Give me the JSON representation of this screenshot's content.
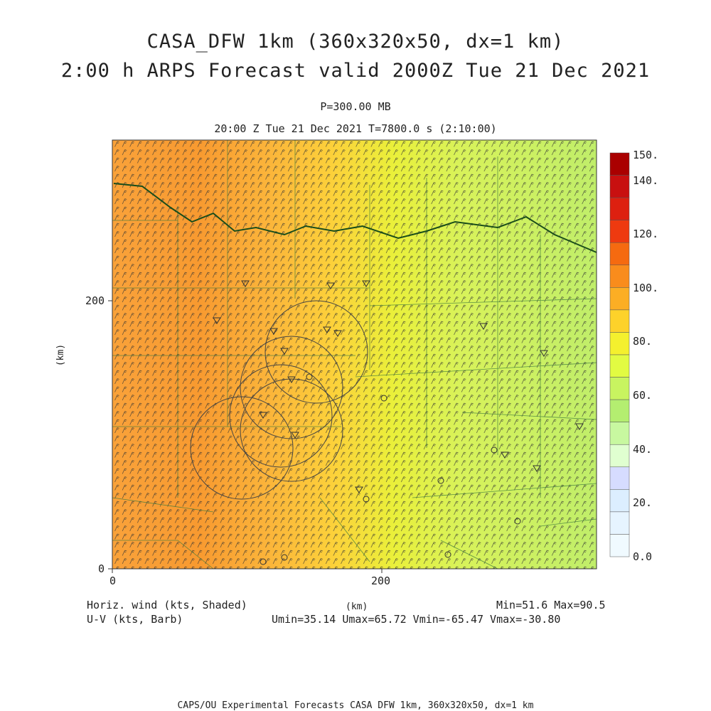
{
  "title_line1": "CASA_DFW 1km (360x320x50, dx=1 km)",
  "title_line2": "2:00 h ARPS Forecast valid 2000Z Tue 21 Dec 2021",
  "pressure_level": "P=300.00 MB",
  "valid_time": "20:00 Z Tue 21 Dec 2021    T=7800.0 s (2:10:00)",
  "axes": {
    "y_ticks": [
      "0",
      "200"
    ],
    "x_ticks": [
      "0",
      "200"
    ],
    "x_label": "(km)",
    "y_label": "(km)"
  },
  "colorbar": {
    "labels": [
      "150.",
      "140.",
      "120.",
      "100.",
      "80.",
      "60.",
      "40.",
      "20.",
      "0.0"
    ],
    "colors": [
      "#aa0000",
      "#c81010",
      "#dd2010",
      "#ee3a10",
      "#f56a10",
      "#f98c1c",
      "#fcae24",
      "#fdd22a",
      "#f4f02e",
      "#e2fb42",
      "#c8f460",
      "#b4ee70",
      "#c8f8a0",
      "#e0ffd0",
      "#d6dcff",
      "#dceeff",
      "#e6f4ff",
      "#f0faff"
    ]
  },
  "legend": {
    "left_line1": "Horiz. wind (kts, Shaded)",
    "left_line2": "U-V (kts, Barb)",
    "center_unit": "(km)",
    "min_max": "Min=51.6 Max=90.5",
    "uv_range": "Umin=35.14 Umax=65.72 Vmin=-65.47 Vmax=-30.80"
  },
  "footer": "CAPS/OU Experimental Forecasts  CASA DFW 1km, 360x320x50, dx=1 km"
}
